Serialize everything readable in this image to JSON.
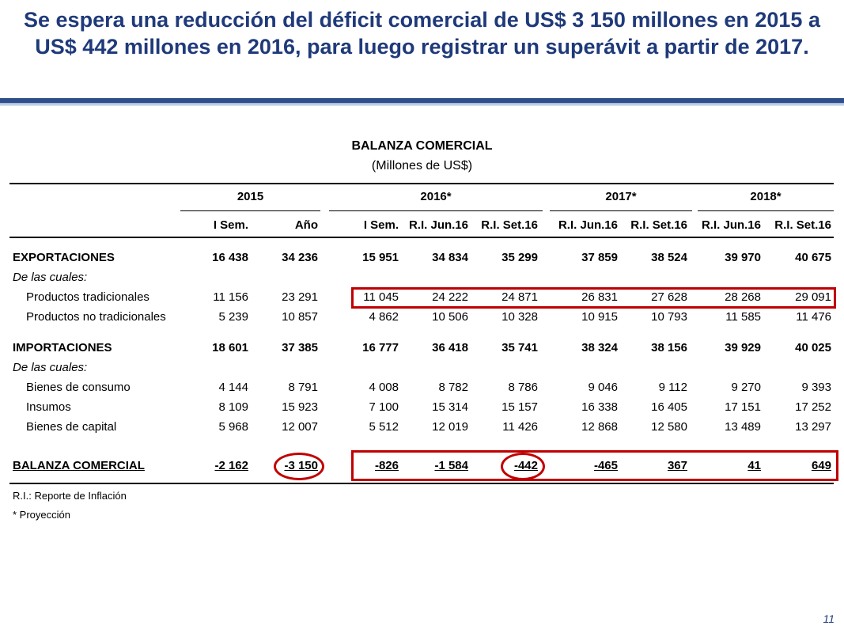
{
  "title": "Se espera una reducción del déficit comercial de US$ 3 150 millones en 2015 a US$ 442 millones en 2016, para luego registrar un superávit a partir de 2017.",
  "table": {
    "title": "BALANZA COMERCIAL",
    "subtitle": "(Millones de US$)",
    "years": [
      "2015",
      "2016*",
      "2017*",
      "2018*"
    ],
    "columns": [
      "I Sem.",
      "Año",
      "I Sem.",
      "R.I. Jun.16",
      "R.I. Set.16",
      "R.I. Jun.16",
      "R.I. Set.16",
      "R.I. Jun.16",
      "R.I. Set.16"
    ],
    "rows": [
      {
        "label": "EXPORTACIONES",
        "values": [
          "16 438",
          "34 236",
          "15 951",
          "34 834",
          "35 299",
          "37 859",
          "38 524",
          "39 970",
          "40 675"
        ]
      },
      {
        "label": "De las cuales:"
      },
      {
        "label": "Productos tradicionales",
        "values": [
          "11 156",
          "23 291",
          "11 045",
          "24 222",
          "24 871",
          "26 831",
          "27 628",
          "28 268",
          "29 091"
        ]
      },
      {
        "label": "Productos no tradicionales",
        "values": [
          "5 239",
          "10 857",
          "4 862",
          "10 506",
          "10 328",
          "10 915",
          "10 793",
          "11 585",
          "11 476"
        ]
      },
      {
        "label": "IMPORTACIONES",
        "values": [
          "18 601",
          "37 385",
          "16 777",
          "36 418",
          "35 741",
          "38 324",
          "38 156",
          "39 929",
          "40 025"
        ]
      },
      {
        "label": "De las cuales:"
      },
      {
        "label": "Bienes de consumo",
        "values": [
          "4 144",
          "8 791",
          "4 008",
          "8 782",
          "8 786",
          "9 046",
          "9 112",
          "9 270",
          "9 393"
        ]
      },
      {
        "label": "Insumos",
        "values": [
          "8 109",
          "15 923",
          "7 100",
          "15 314",
          "15 157",
          "16 338",
          "16 405",
          "17 151",
          "17 252"
        ]
      },
      {
        "label": "Bienes de capital",
        "values": [
          "5 968",
          "12 007",
          "5 512",
          "12 019",
          "11 426",
          "12 868",
          "12 580",
          "13 489",
          "13 297"
        ]
      },
      {
        "label": "BALANZA COMERCIAL",
        "values": [
          "-2 162",
          "-3 150",
          "-826",
          "-1 584",
          "-442",
          "-465",
          "367",
          "41",
          "649"
        ]
      }
    ],
    "notes": [
      "R.I.: Reporte de Inflación",
      "* Proyección"
    ]
  },
  "page_number": "11",
  "colors": {
    "title": "#1f3a7a",
    "highlight": "#c00000"
  }
}
